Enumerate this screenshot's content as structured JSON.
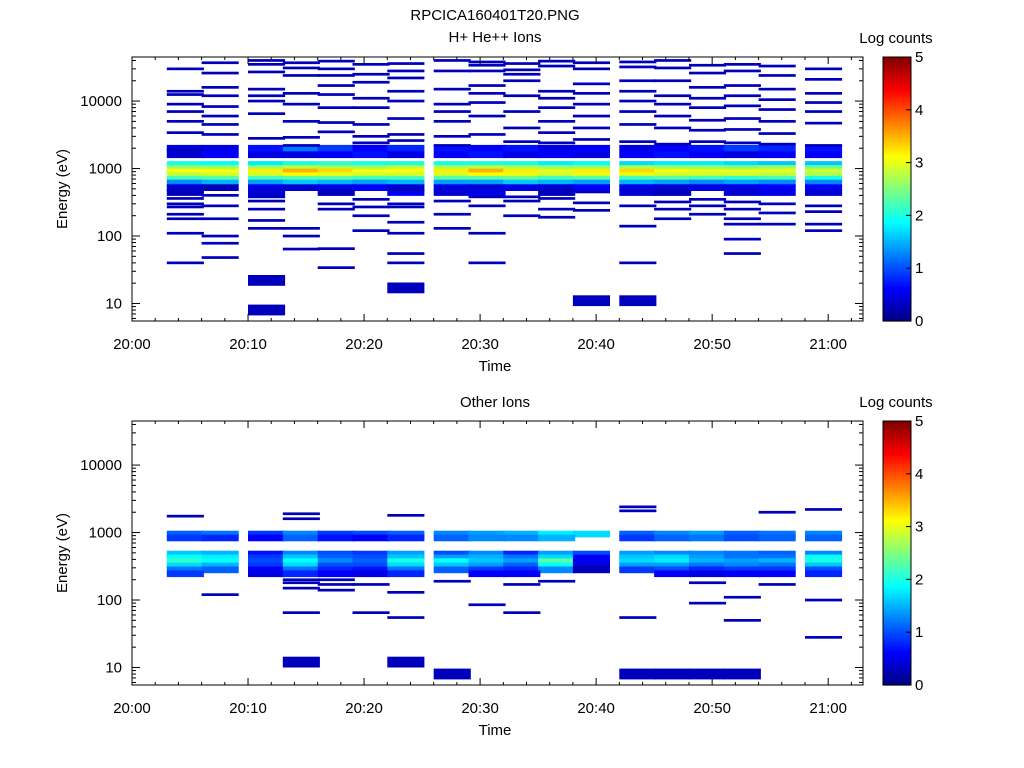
{
  "figure": {
    "file_title": "RPCICA160401T20.PNG",
    "colormap": [
      "#00007f",
      "#0000ff",
      "#007fff",
      "#00ffff",
      "#7fff7f",
      "#ffff00",
      "#ff7f00",
      "#ff0000",
      "#7f0000"
    ]
  },
  "chart_data": [
    {
      "type": "heatmap",
      "title": "H+ He++ Ions",
      "xlabel": "Time",
      "ylabel": "Energy (eV)",
      "x_axis": {
        "start": "20:00",
        "end": "21:03",
        "tick_labels": [
          "20:00",
          "20:10",
          "20:20",
          "20:30",
          "20:40",
          "20:50",
          "21:00"
        ]
      },
      "y_axis": {
        "scale": "log",
        "min_eV": 5.5,
        "max_eV": 45000,
        "tick_labels": [
          "10",
          "100",
          "1000",
          "10000"
        ]
      },
      "colorbar": {
        "label": "Log counts",
        "min": 0,
        "max": 5,
        "tick_labels": [
          "0",
          "1",
          "2",
          "3",
          "4",
          "5"
        ]
      },
      "time_bins": [
        "20:03",
        "20:06",
        "20:10",
        "20:13",
        "20:16",
        "20:19",
        "20:22",
        "20:26",
        "20:29",
        "20:32",
        "20:35",
        "20:38",
        "20:42",
        "20:45",
        "20:48",
        "20:51",
        "20:54",
        "20:58"
      ],
      "rows": [
        {
          "energy_eV": 1150,
          "values": [
            2.0,
            1.9,
            1.8,
            2.0,
            2.1,
            2.0,
            2.0,
            2.0,
            2.0,
            2.0,
            1.8,
            1.9,
            1.7,
            1.8,
            1.8,
            1.7,
            1.6,
            1.6
          ]
        },
        {
          "energy_eV": 1000,
          "values": [
            2.6,
            2.6,
            2.6,
            2.8,
            2.7,
            2.6,
            2.8,
            2.7,
            2.8,
            2.7,
            2.6,
            2.6,
            2.7,
            2.6,
            2.6,
            2.5,
            2.6,
            2.4
          ]
        },
        {
          "energy_eV": 890,
          "values": [
            3.1,
            3.1,
            3.2,
            3.5,
            3.3,
            3.1,
            3.1,
            3.2,
            3.5,
            3.2,
            3.0,
            3.2,
            3.3,
            3.1,
            3.0,
            3.0,
            3.0,
            2.9
          ]
        },
        {
          "energy_eV": 780,
          "values": [
            2.8,
            2.9,
            2.9,
            3.1,
            3.0,
            2.9,
            2.9,
            2.9,
            3.1,
            3.0,
            2.9,
            3.0,
            3.0,
            2.9,
            2.9,
            2.9,
            2.8,
            2.7
          ]
        },
        {
          "energy_eV": 690,
          "values": [
            2.2,
            2.3,
            2.2,
            2.3,
            2.3,
            2.2,
            2.2,
            2.3,
            2.3,
            2.4,
            2.2,
            2.3,
            2.2,
            2.3,
            2.2,
            2.1,
            2.2,
            2.0
          ]
        },
        {
          "energy_eV": 610,
          "values": [
            1.3,
            1.5,
            1.4,
            1.6,
            1.5,
            1.4,
            1.5,
            1.4,
            1.4,
            1.6,
            1.5,
            1.4,
            1.5,
            1.4,
            1.3,
            1.4,
            1.3,
            1.3
          ]
        },
        {
          "energy_eV": 2000,
          "values": [
            0.5,
            0.5,
            0.7,
            1.2,
            0.9,
            0.6,
            0.8,
            0.7,
            0.6,
            0.7,
            0.5,
            0.6,
            0.5,
            0.6,
            0.7,
            0.9,
            0.8,
            0.7
          ]
        },
        {
          "energy_eV": 1600,
          "values": [
            0.4,
            0.6,
            0.5,
            0.5,
            0.6,
            0.7,
            0.5,
            0.6,
            0.7,
            0.5,
            0.6,
            0.5,
            0.6,
            0.7,
            0.6,
            0.5,
            0.6,
            0.6
          ]
        },
        {
          "energy_eV": 520,
          "values": [
            0.4,
            0.3,
            0.5,
            0.4,
            0.5,
            0.6,
            0.4,
            0.5,
            0.4,
            0.5,
            0.4,
            0.6,
            0.5,
            0.4,
            0.5,
            0.5,
            0.6,
            0.6
          ]
        },
        {
          "energy_eV": 440,
          "values": [
            0.3,
            0.0,
            0.4,
            0.0,
            0.3,
            0.0,
            0.6,
            0.4,
            0.5,
            0.0,
            0.3,
            0.0,
            0.4,
            0.3,
            0.0,
            0.4,
            0.5,
            0.4
          ]
        }
      ],
      "sparse_cells": [
        {
          "time": "20:03",
          "energies_eV": [
            30000,
            14000,
            12500,
            9000,
            7000,
            5000,
            3400,
            1900,
            360,
            300,
            270,
            210,
            180,
            110,
            40
          ]
        },
        {
          "time": "20:06",
          "energies_eV": [
            37000,
            26000,
            16000,
            12000,
            8300,
            6000,
            4500,
            3200,
            400,
            280,
            180,
            100,
            78,
            48
          ]
        },
        {
          "time": "20:10",
          "energies_eV": [
            40000,
            35000,
            27000,
            15000,
            12000,
            10000,
            6500,
            2800,
            380,
            330,
            250,
            170,
            130,
            22,
            8
          ]
        },
        {
          "time": "20:13",
          "energies_eV": [
            37000,
            31000,
            24000,
            13000,
            9000,
            5000,
            2900,
            2200,
            130,
            100,
            64
          ]
        },
        {
          "time": "20:16",
          "energies_eV": [
            39000,
            30000,
            24000,
            17000,
            12500,
            8000,
            4800,
            3500,
            300,
            250,
            65,
            34
          ]
        },
        {
          "time": "20:19",
          "energies_eV": [
            35000,
            25000,
            19000,
            11000,
            8000,
            4500,
            3000,
            2400,
            350,
            270,
            200,
            120
          ]
        },
        {
          "time": "20:22",
          "energies_eV": [
            36000,
            28000,
            22000,
            14000,
            10000,
            5500,
            3200,
            2600,
            480,
            300,
            270,
            160,
            110,
            55,
            40,
            17
          ]
        },
        {
          "time": "20:26",
          "energies_eV": [
            40000,
            28000,
            15000,
            9000,
            7000,
            5000,
            3000,
            2200,
            330,
            210,
            130
          ]
        },
        {
          "time": "20:29",
          "energies_eV": [
            38000,
            34000,
            28000,
            17000,
            13000,
            9500,
            6000,
            3200,
            380,
            280,
            110,
            40
          ]
        },
        {
          "time": "20:32",
          "energies_eV": [
            36000,
            29000,
            25000,
            20000,
            12000,
            7000,
            4000,
            2500,
            380,
            330,
            200
          ]
        },
        {
          "time": "20:35",
          "energies_eV": [
            39000,
            33000,
            14000,
            11000,
            8000,
            5000,
            3400,
            2400,
            360,
            250,
            190
          ]
        },
        {
          "time": "20:38",
          "energies_eV": [
            37000,
            30000,
            18000,
            13000,
            9000,
            6000,
            4000,
            2700,
            450,
            310,
            240,
            11
          ]
        },
        {
          "time": "20:42",
          "energies_eV": [
            38000,
            32000,
            20000,
            14000,
            10000,
            7000,
            4500,
            2500,
            280,
            140,
            40,
            11
          ]
        },
        {
          "time": "20:45",
          "energies_eV": [
            40000,
            31000,
            20000,
            12000,
            9000,
            6000,
            4000,
            2300,
            320,
            250,
            180
          ]
        },
        {
          "time": "20:48",
          "energies_eV": [
            34000,
            26000,
            16000,
            11000,
            8000,
            5200,
            3700,
            2500,
            350,
            280,
            210
          ]
        },
        {
          "time": "20:51",
          "energies_eV": [
            35000,
            28000,
            17000,
            12000,
            8500,
            5500,
            3800,
            2400,
            320,
            250,
            180,
            150,
            90,
            55
          ]
        },
        {
          "time": "20:54",
          "energies_eV": [
            33000,
            24000,
            15000,
            10500,
            7500,
            5000,
            3300,
            2300,
            300,
            220,
            150
          ]
        },
        {
          "time": "20:58",
          "energies_eV": [
            30000,
            21000,
            13000,
            9500,
            7000,
            4700,
            2200,
            280,
            230,
            150,
            120
          ]
        }
      ]
    },
    {
      "type": "heatmap",
      "title": "Other Ions",
      "xlabel": "Time",
      "ylabel": "Energy (eV)",
      "x_axis": {
        "start": "20:00",
        "end": "21:03",
        "tick_labels": [
          "20:00",
          "20:10",
          "20:20",
          "20:30",
          "20:40",
          "20:50",
          "21:00"
        ]
      },
      "y_axis": {
        "scale": "log",
        "min_eV": 5.5,
        "max_eV": 45000,
        "tick_labels": [
          "10",
          "100",
          "1000",
          "10000"
        ]
      },
      "colorbar": {
        "label": "Log counts",
        "min": 0,
        "max": 5,
        "tick_labels": [
          "0",
          "1",
          "2",
          "3",
          "4",
          "5"
        ]
      },
      "time_bins": [
        "20:03",
        "20:06",
        "20:10",
        "20:13",
        "20:16",
        "20:19",
        "20:22",
        "20:26",
        "20:29",
        "20:32",
        "20:35",
        "20:38",
        "20:42",
        "20:45",
        "20:48",
        "20:51",
        "20:54",
        "20:58"
      ],
      "rows": [
        {
          "energy_eV": 950,
          "values": [
            1.1,
            1.2,
            0.9,
            1.3,
            0.9,
            1.0,
            1.1,
            1.3,
            1.4,
            1.5,
            1.8,
            1.7,
            1.1,
            1.3,
            1.4,
            1.1,
            1.2,
            1.3
          ]
        },
        {
          "energy_eV": 830,
          "values": [
            0.9,
            0.8,
            0.6,
            1.1,
            0.7,
            0.6,
            0.8,
            1.1,
            1.3,
            1.3,
            1.5,
            0.0,
            0.9,
            1.1,
            1.2,
            1.0,
            1.1,
            1.1
          ]
        },
        {
          "energy_eV": 480,
          "values": [
            1.6,
            1.5,
            0.7,
            1.3,
            1.0,
            0.9,
            1.4,
            1.0,
            1.3,
            0.8,
            1.4,
            1.0,
            1.4,
            1.3,
            1.3,
            1.2,
            1.1,
            1.3
          ]
        },
        {
          "energy_eV": 420,
          "values": [
            1.9,
            1.8,
            0.9,
            1.6,
            1.1,
            1.0,
            1.6,
            1.4,
            1.5,
            1.2,
            1.7,
            0.6,
            1.6,
            1.7,
            1.4,
            1.2,
            1.2,
            1.9
          ]
        },
        {
          "energy_eV": 370,
          "values": [
            2.1,
            1.9,
            1.0,
            1.9,
            1.3,
            1.1,
            2.0,
            1.9,
            1.6,
            1.4,
            2.3,
            0.6,
            1.7,
            1.8,
            1.5,
            1.4,
            1.5,
            2.0
          ]
        },
        {
          "energy_eV": 320,
          "values": [
            1.7,
            1.5,
            0.9,
            1.7,
            1.0,
            1.0,
            1.7,
            1.6,
            1.4,
            1.1,
            1.9,
            0.4,
            1.4,
            1.4,
            1.2,
            1.3,
            1.2,
            1.6
          ]
        },
        {
          "energy_eV": 280,
          "values": [
            1.2,
            1.1,
            0.6,
            1.2,
            0.8,
            0.7,
            1.2,
            1.1,
            0.9,
            0.8,
            1.3,
            0.3,
            0.9,
            1.0,
            0.8,
            0.9,
            0.9,
            1.0
          ]
        },
        {
          "energy_eV": 245,
          "values": [
            0.9,
            0.0,
            0.5,
            0.8,
            0.6,
            0.5,
            0.8,
            0.0,
            0.6,
            0.6,
            0.0,
            0.0,
            0.0,
            0.6,
            0.5,
            0.6,
            0.6,
            0.8
          ]
        }
      ],
      "sparse_cells": [
        {
          "time": "20:03",
          "energies_eV": [
            1750
          ]
        },
        {
          "time": "20:06",
          "energies_eV": [
            120
          ]
        },
        {
          "time": "20:13",
          "energies_eV": [
            1900,
            1600,
            200,
            180,
            150,
            65,
            12
          ]
        },
        {
          "time": "20:16",
          "energies_eV": [
            200,
            170,
            140
          ]
        },
        {
          "time": "20:19",
          "energies_eV": [
            170,
            65
          ]
        },
        {
          "time": "20:22",
          "energies_eV": [
            1800,
            130,
            55,
            12
          ]
        },
        {
          "time": "20:26",
          "energies_eV": [
            190,
            8
          ]
        },
        {
          "time": "20:29",
          "energies_eV": [
            85
          ]
        },
        {
          "time": "20:32",
          "energies_eV": [
            170,
            65
          ]
        },
        {
          "time": "20:35",
          "energies_eV": [
            190
          ]
        },
        {
          "time": "20:42",
          "energies_eV": [
            2400,
            2100,
            55,
            8
          ]
        },
        {
          "time": "20:45",
          "energies_eV": [
            8
          ]
        },
        {
          "time": "20:48",
          "energies_eV": [
            180,
            90,
            8
          ]
        },
        {
          "time": "20:51",
          "energies_eV": [
            110,
            50,
            8
          ]
        },
        {
          "time": "20:54",
          "energies_eV": [
            2000,
            170
          ]
        },
        {
          "time": "20:58",
          "energies_eV": [
            2200,
            100,
            28
          ]
        }
      ]
    }
  ]
}
